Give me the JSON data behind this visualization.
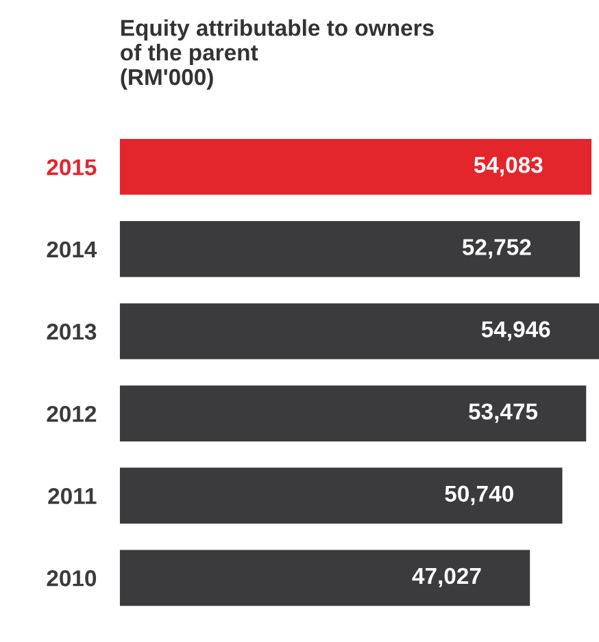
{
  "chart_data": {
    "type": "bar",
    "orientation": "horizontal",
    "title": "Equity attributable to owners\nof the parent\n(RM'000)",
    "categories": [
      "2015",
      "2014",
      "2013",
      "2012",
      "2011",
      "2010"
    ],
    "values": [
      54083,
      52752,
      54946,
      53475,
      50740,
      47027
    ],
    "colors": [
      "#e3262c",
      "#3b3b3d",
      "#3b3b3d",
      "#3b3b3d",
      "#3b3b3d",
      "#3b3b3d"
    ],
    "value_labels": [
      "54,083",
      "52,752",
      "54,946",
      "53,475",
      "50,740",
      "47,027"
    ],
    "grid": false,
    "legend": false
  }
}
